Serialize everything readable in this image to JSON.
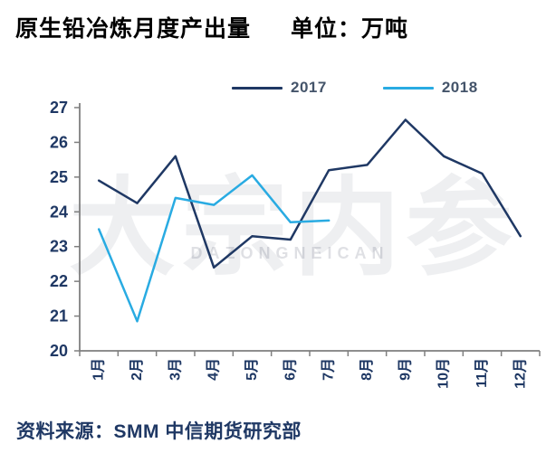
{
  "header": {
    "title": "原生铅冶炼月度产出量",
    "unit": "单位：万吨"
  },
  "legend": {
    "items": [
      {
        "label": "2017",
        "color": "#1f3864"
      },
      {
        "label": "2018",
        "color": "#29abe2"
      }
    ]
  },
  "watermark": {
    "text": "大宗内参",
    "subtext": "DAZONGNEICAN"
  },
  "footer": {
    "source": "资料来源：SMM 中信期货研究部"
  },
  "colors": {
    "navy": "#1f3864",
    "sky_blue": "#29abe2",
    "axis_gray": "#7f7f7f",
    "tick_label": "#1f3864"
  },
  "chart_data": {
    "type": "line",
    "title": "原生铅冶炼月度产出量",
    "unit": "万吨",
    "categories": [
      "1月",
      "2月",
      "3月",
      "4月",
      "5月",
      "6月",
      "7月",
      "8月",
      "9月",
      "10月",
      "11月",
      "12月"
    ],
    "series": [
      {
        "name": "2017",
        "color": "#1f3864",
        "values": [
          24.9,
          24.25,
          25.6,
          22.4,
          23.3,
          23.2,
          25.2,
          25.35,
          26.65,
          25.6,
          25.1,
          23.3
        ]
      },
      {
        "name": "2018",
        "color": "#29abe2",
        "values": [
          23.5,
          20.85,
          24.4,
          24.2,
          25.05,
          23.7,
          23.75
        ]
      }
    ],
    "ylim": [
      20,
      27
    ],
    "ytick_step": 1,
    "grid": false,
    "legend_position": "top"
  }
}
